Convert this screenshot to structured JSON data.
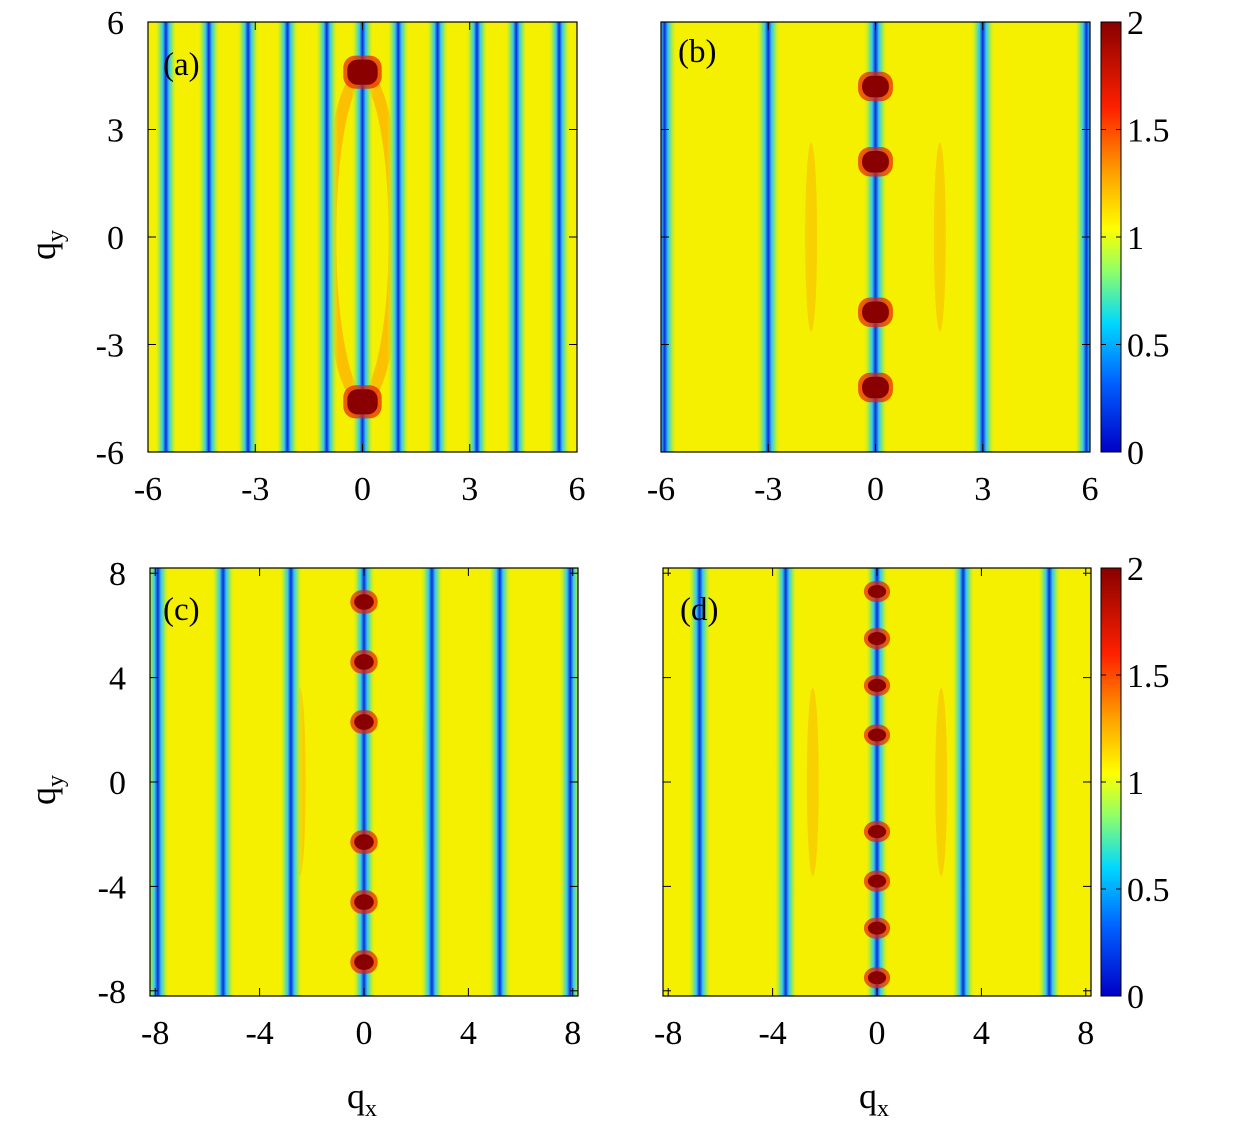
{
  "chart_data": [
    {
      "type": "heatmap",
      "panel": "(a)",
      "xlim": [
        -6,
        6
      ],
      "ylim": [
        -6,
        6
      ],
      "xticks": [
        -6,
        -3,
        0,
        3,
        6
      ],
      "yticks": [
        -6,
        -3,
        0,
        3,
        6
      ],
      "xtick_labels": [
        "-6",
        "-3",
        "0",
        "3",
        "6"
      ],
      "ytick_labels": [
        "6",
        "3",
        "0",
        "-3",
        "-6"
      ],
      "ylabel": "q",
      "ylabel_sub": "y",
      "xlabel": "",
      "xlabel_sub": "",
      "zlim": [
        0,
        2
      ],
      "stripes_x": [
        -5.5,
        -4.3,
        -3.2,
        -2.1,
        -1.0,
        0.0,
        1.0,
        2.1,
        3.2,
        4.3,
        5.5
      ],
      "stripe_width": 0.12,
      "hotspots": [
        {
          "x": 0,
          "y": 4.6
        },
        {
          "x": 0,
          "y": -4.6
        }
      ],
      "hotspot_size": [
        0.85,
        0.7
      ],
      "ellipse": {
        "x": 0,
        "y": 0,
        "rx": 0.9,
        "ry": 4.5
      },
      "colorbar": false
    },
    {
      "type": "heatmap",
      "panel": "(b)",
      "xlim": [
        -6,
        6
      ],
      "ylim": [
        -6,
        6
      ],
      "xticks": [
        -6,
        -3,
        0,
        3,
        6
      ],
      "yticks": [
        -6,
        -3,
        0,
        3,
        6
      ],
      "xtick_labels": [
        "-6",
        "-3",
        "0",
        "3",
        "6"
      ],
      "ytick_labels": [],
      "ylabel": "",
      "ylabel_sub": "",
      "xlabel": "",
      "xlabel_sub": "",
      "zlim": [
        0,
        2
      ],
      "stripes_x": [
        -5.9,
        -3.0,
        0.0,
        3.0,
        5.9
      ],
      "stripe_width": 0.13,
      "hotspots": [
        {
          "x": 0,
          "y": 4.2
        },
        {
          "x": 0,
          "y": 2.1
        },
        {
          "x": 0,
          "y": -2.1
        },
        {
          "x": 0,
          "y": -4.2
        }
      ],
      "hotspot_size": [
        0.75,
        0.6
      ],
      "ellipse": null,
      "colorbar": true,
      "colorbar_ticks": [
        "2",
        "1.5",
        "1",
        "0.5",
        "0"
      ]
    },
    {
      "type": "heatmap",
      "panel": "(c)",
      "xlim": [
        -8.2,
        8.2
      ],
      "ylim": [
        -8.2,
        8.2
      ],
      "xticks": [
        -8,
        -4,
        0,
        4,
        8
      ],
      "yticks": [
        -8,
        -4,
        0,
        4,
        8
      ],
      "xtick_labels": [
        "-8",
        "-4",
        "0",
        "4",
        "8"
      ],
      "ytick_labels": [
        "8",
        "4",
        "0",
        "-4",
        "-8"
      ],
      "ylabel": "q",
      "ylabel_sub": "y",
      "xlabel": "q",
      "xlabel_sub": "x",
      "zlim": [
        0,
        2
      ],
      "stripes_x": [
        -7.9,
        -5.4,
        -2.8,
        0.0,
        2.6,
        5.2,
        7.9
      ],
      "stripe_width": 0.17,
      "hotspots": [
        {
          "x": 0,
          "y": 6.9
        },
        {
          "x": 0,
          "y": 4.6
        },
        {
          "x": 0,
          "y": 2.3
        },
        {
          "x": 0,
          "y": -2.3
        },
        {
          "x": 0,
          "y": -4.6
        },
        {
          "x": 0,
          "y": -6.9
        }
      ],
      "hotspot_size": [
        0.75,
        0.6
      ],
      "ellipse": null,
      "colorbar": false
    },
    {
      "type": "heatmap",
      "panel": "(d)",
      "xlim": [
        -8.2,
        8.2
      ],
      "ylim": [
        -8.2,
        8.2
      ],
      "xticks": [
        -8,
        -4,
        0,
        4,
        8
      ],
      "yticks": [
        -8,
        -4,
        0,
        4,
        8
      ],
      "xtick_labels": [
        "-8",
        "-4",
        "0",
        "4",
        "8"
      ],
      "ytick_labels": [],
      "ylabel": "",
      "ylabel_sub": "",
      "xlabel": "q",
      "xlabel_sub": "x",
      "zlim": [
        0,
        2
      ],
      "stripes_x": [
        -6.8,
        -3.5,
        0.0,
        3.3,
        6.6
      ],
      "stripe_width": 0.17,
      "hotspots": [
        {
          "x": 0,
          "y": 7.3
        },
        {
          "x": 0,
          "y": 5.5
        },
        {
          "x": 0,
          "y": 3.7
        },
        {
          "x": 0,
          "y": 1.8
        },
        {
          "x": 0,
          "y": -1.9
        },
        {
          "x": 0,
          "y": -3.8
        },
        {
          "x": 0,
          "y": -5.6
        },
        {
          "x": 0,
          "y": -7.5
        }
      ],
      "hotspot_size": [
        0.7,
        0.5
      ],
      "ellipse": null,
      "colorbar": true,
      "colorbar_ticks": [
        "2",
        "1.5",
        "1",
        "0.5",
        "0"
      ]
    }
  ],
  "colors": {
    "background": "#f5f000",
    "stripe_core": "#0a2fd6",
    "stripe_edge": "#3fc8f0",
    "hotspot": "#8a0000",
    "hotspot_edge": "#e82000",
    "ellipse": "#ff9a00",
    "colormap": [
      "#0000c8",
      "#0060ff",
      "#00d8ff",
      "#8fff6a",
      "#ffff00",
      "#ffa000",
      "#ff2000",
      "#880000"
    ]
  }
}
